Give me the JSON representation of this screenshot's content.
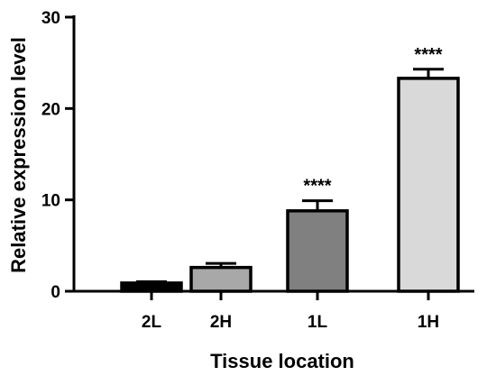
{
  "chart_data": {
    "type": "bar",
    "categories": [
      "2L",
      "2H",
      "1L",
      "1H"
    ],
    "values": [
      0.9,
      2.6,
      8.8,
      23.3
    ],
    "errors": [
      0.15,
      0.45,
      1.1,
      1.0
    ],
    "significance": [
      "",
      "",
      "****",
      "****"
    ],
    "colors": [
      "#000000",
      "#a8a8a8",
      "#808080",
      "#d9d9d9"
    ],
    "title": "",
    "xlabel": "Tissue location",
    "ylabel": "Relative expression level",
    "ylim": [
      0,
      30
    ],
    "yticks": [
      0,
      10,
      20,
      30
    ],
    "grid": false,
    "legend": "none"
  }
}
